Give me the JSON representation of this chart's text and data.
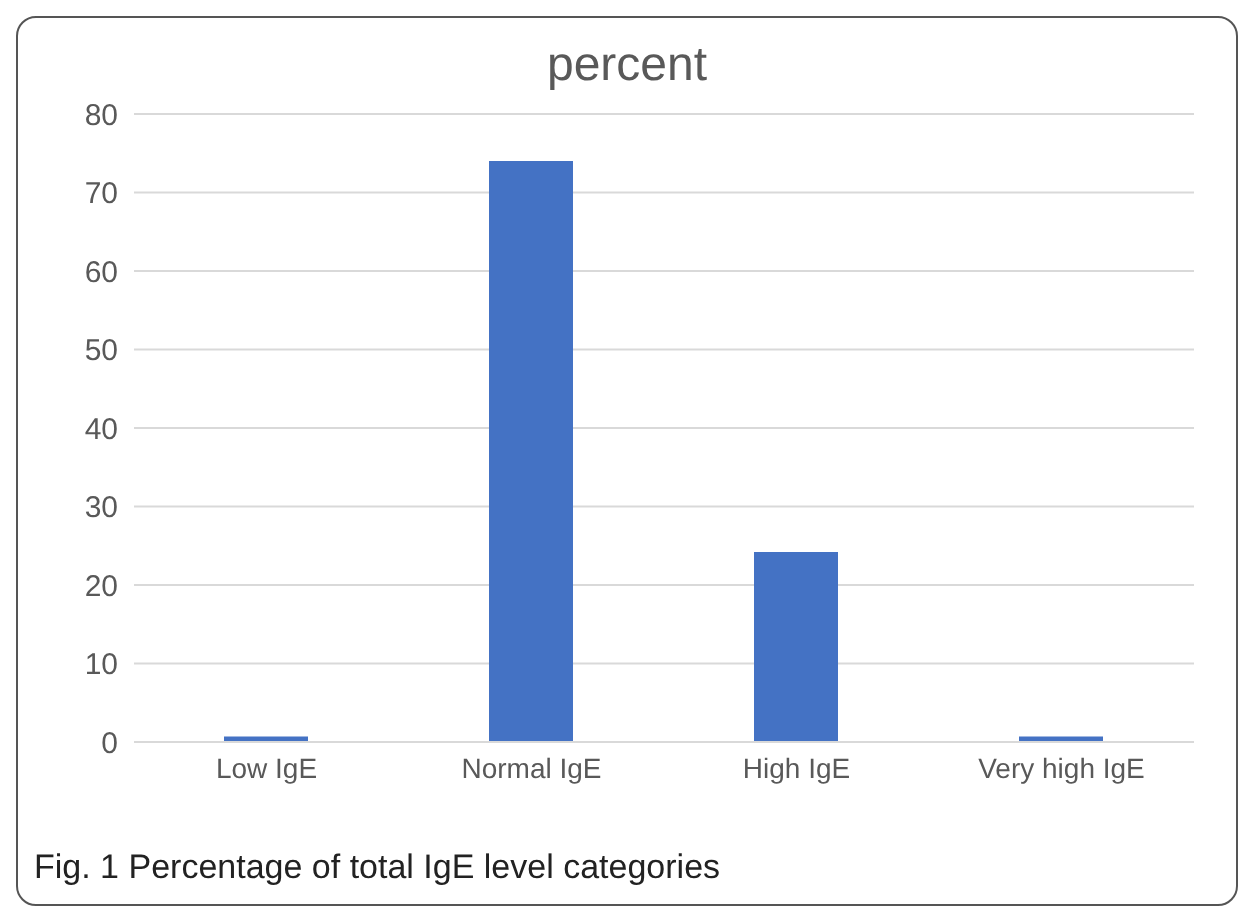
{
  "chart_data": {
    "type": "bar",
    "title": "percent",
    "categories": [
      "Low IgE",
      "Normal IgE",
      "High IgE",
      "Very high IgE"
    ],
    "values": [
      0.7,
      74,
      24.2,
      0.7
    ],
    "color": "#4472c4",
    "ylim": [
      0,
      80
    ],
    "yticks": [
      0,
      10,
      20,
      30,
      40,
      50,
      60,
      70,
      80
    ],
    "grid": "y",
    "annotations": [
      "Fig. 1  Percentage of total IgE level categories"
    ]
  }
}
